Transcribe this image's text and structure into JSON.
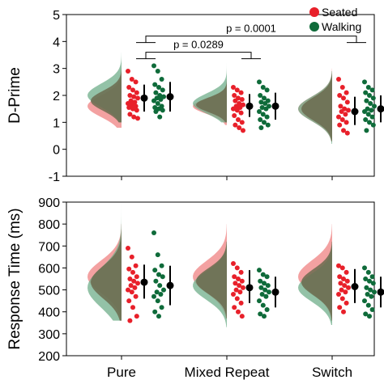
{
  "legend": {
    "placement": "top-right",
    "items": [
      {
        "label": "Seated",
        "color": "#e8202a"
      },
      {
        "label": "Walking",
        "color": "#0f6b3a"
      }
    ]
  },
  "colors": {
    "seated": "#e8202a",
    "walking": "#0f6b3a",
    "seated_dist": "#f08a8a",
    "walking_dist": "#6fae8a",
    "overlap": "#6b6b4f"
  },
  "chart_data": [
    {
      "type": "scatter",
      "title": "",
      "xlabel": "",
      "ylabel": "D-Prime",
      "ylim": [
        -1,
        5
      ],
      "yticks": [
        -1,
        0,
        1,
        2,
        3,
        4,
        5
      ],
      "categories": [
        "Pure",
        "Mixed Repeat",
        "Switch"
      ],
      "series": [
        {
          "name": "Seated",
          "mean": [
            1.9,
            1.6,
            1.4
          ],
          "error_low": [
            1.4,
            1.2,
            0.9
          ],
          "error_high": [
            2.4,
            2.05,
            1.95
          ],
          "distribution_peak": [
            1.6,
            1.6,
            1.5
          ],
          "distribution_range": [
            [
              0.8,
              3.2
            ],
            [
              0.9,
              2.6
            ],
            [
              0.3,
              3.0
            ]
          ]
        },
        {
          "name": "Walking",
          "mean": [
            1.95,
            1.6,
            1.5
          ],
          "error_low": [
            1.4,
            1.1,
            1.0
          ],
          "error_high": [
            2.5,
            2.1,
            2.0
          ],
          "distribution_peak": [
            2.0,
            1.7,
            1.5
          ],
          "distribution_range": [
            [
              1.0,
              3.6
            ],
            [
              1.0,
              3.2
            ],
            [
              0.2,
              2.9
            ]
          ]
        }
      ],
      "points": {
        "Pure": {
          "Seated": [
            2.9,
            2.6,
            2.5,
            2.3,
            2.2,
            2.1,
            2.0,
            1.95,
            1.9,
            1.8,
            1.75,
            1.7,
            1.65,
            1.6,
            1.55,
            1.5,
            1.45,
            1.3,
            1.2,
            1.15
          ],
          "Walking": [
            3.1,
            2.9,
            2.6,
            2.4,
            2.3,
            2.2,
            2.1,
            2.0,
            1.95,
            1.9,
            1.85,
            1.8,
            1.7,
            1.6,
            1.55,
            1.5,
            1.45,
            1.4,
            1.2
          ]
        },
        "Mixed Repeat": {
          "Seated": [
            2.3,
            2.2,
            2.1,
            2.0,
            1.9,
            1.85,
            1.8,
            1.7,
            1.65,
            1.6,
            1.55,
            1.5,
            1.45,
            1.35,
            1.25,
            1.1,
            1.0,
            0.9,
            0.8,
            0.7
          ],
          "Walking": [
            2.5,
            2.3,
            2.2,
            2.0,
            1.9,
            1.8,
            1.75,
            1.7,
            1.6,
            1.55,
            1.5,
            1.4,
            1.3,
            1.2,
            1.1,
            1.0,
            0.9,
            0.8
          ]
        },
        "Switch": {
          "Seated": [
            2.6,
            2.3,
            2.1,
            2.0,
            1.9,
            1.75,
            1.6,
            1.5,
            1.45,
            1.4,
            1.3,
            1.2,
            1.1,
            1.0,
            0.9,
            0.7,
            0.6
          ],
          "Walking": [
            2.5,
            2.3,
            2.2,
            2.1,
            2.0,
            1.9,
            1.8,
            1.7,
            1.6,
            1.5,
            1.45,
            1.4,
            1.3,
            1.2,
            1.1,
            1.0,
            0.9,
            0.7
          ]
        }
      },
      "annotations": [
        {
          "text": "p = 0.0289",
          "from": "Pure",
          "to": "Mixed Repeat",
          "y": 3.6
        },
        {
          "text": "p = 0.0001",
          "from": "Pure",
          "to": "Switch",
          "y": 4.2
        }
      ],
      "grid": false
    },
    {
      "type": "scatter",
      "title": "",
      "xlabel": "",
      "ylabel": "Response Time (ms)",
      "ylim": [
        200,
        900
      ],
      "yticks": [
        200,
        300,
        400,
        500,
        600,
        700,
        800,
        900
      ],
      "categories": [
        "Pure",
        "Mixed Repeat",
        "Switch"
      ],
      "series": [
        {
          "name": "Seated",
          "mean": [
            535,
            510,
            515
          ],
          "error_low": [
            460,
            440,
            440
          ],
          "error_high": [
            615,
            590,
            595
          ],
          "distribution_peak": [
            560,
            560,
            560
          ],
          "distribution_range": [
            [
              360,
              800
            ],
            [
              370,
              800
            ],
            [
              360,
              800
            ]
          ]
        },
        {
          "name": "Walking",
          "mean": [
            520,
            490,
            490
          ],
          "error_low": [
            430,
            420,
            420
          ],
          "error_high": [
            610,
            560,
            560
          ],
          "distribution_peak": [
            510,
            520,
            510
          ],
          "distribution_range": [
            [
              360,
              900
            ],
            [
              330,
              720
            ],
            [
              340,
              720
            ]
          ]
        }
      ],
      "points": {
        "Pure": {
          "Seated": [
            690,
            650,
            610,
            595,
            580,
            560,
            550,
            540,
            530,
            520,
            510,
            500,
            490,
            470,
            450,
            420,
            380,
            360
          ],
          "Walking": [
            760,
            660,
            610,
            590,
            570,
            560,
            540,
            520,
            500,
            490,
            480,
            470,
            450,
            420,
            400,
            380
          ]
        },
        "Mixed Repeat": {
          "Seated": [
            620,
            600,
            580,
            560,
            550,
            540,
            530,
            520,
            510,
            500,
            490,
            480,
            460,
            440,
            420,
            400,
            380
          ],
          "Walking": [
            590,
            570,
            560,
            540,
            530,
            520,
            510,
            500,
            490,
            480,
            470,
            450,
            430,
            410,
            390,
            380
          ]
        },
        "Switch": {
          "Seated": [
            610,
            600,
            580,
            560,
            550,
            540,
            530,
            520,
            510,
            500,
            490,
            480,
            460,
            440,
            420,
            400
          ],
          "Walking": [
            600,
            580,
            560,
            550,
            540,
            530,
            510,
            500,
            490,
            480,
            470,
            450,
            430,
            410,
            390,
            380
          ]
        }
      },
      "annotations": [],
      "grid": false
    }
  ]
}
